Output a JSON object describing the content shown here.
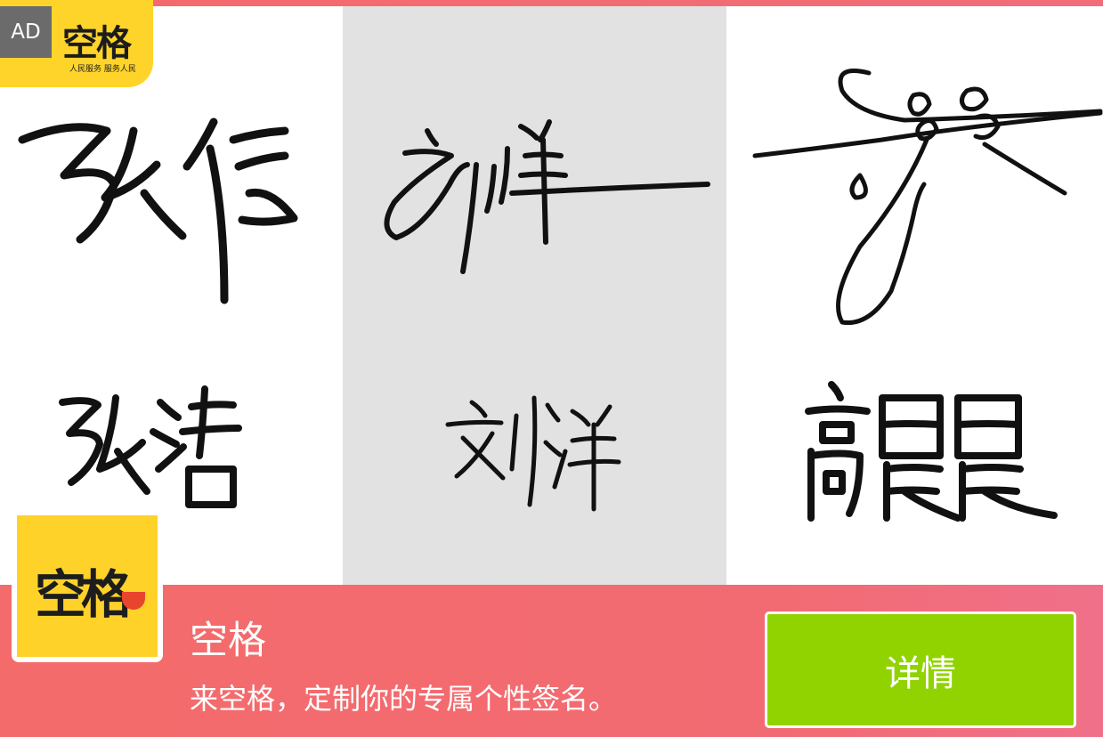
{
  "ad": {
    "badge": "AD"
  },
  "brand": {
    "title": "空格",
    "subtitle": "人民服务 服务人民"
  },
  "signatures": {
    "left": {
      "name": "张浩"
    },
    "middle": {
      "name": "刘洋"
    },
    "right": {
      "name": "高晨晨"
    }
  },
  "banner": {
    "logo_text": "空格",
    "app_name": "空格",
    "description": "来空格，定制你的专属个性签名。",
    "detail_button": "详情"
  },
  "colors": {
    "brand_yellow": "#ffd42a",
    "banner_red": "#f46b6b",
    "button_green": "#90d300",
    "ad_gray": "#6b6b6b"
  }
}
